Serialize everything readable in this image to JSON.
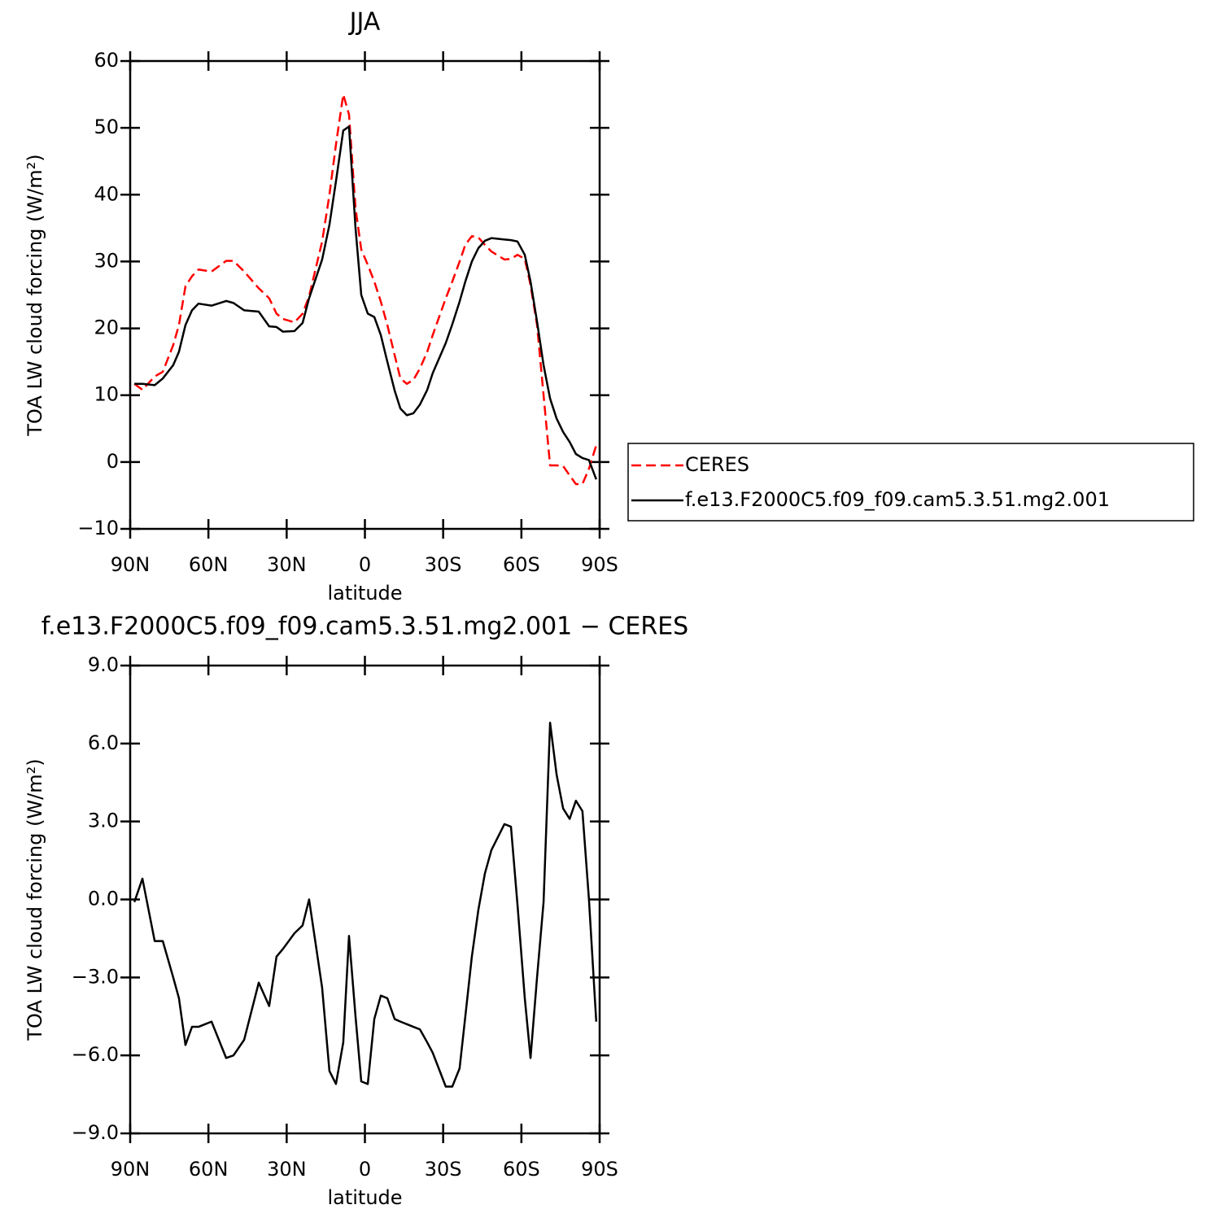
{
  "chart_data": [
    {
      "type": "line",
      "title": "JJA",
      "xlabel": "latitude",
      "ylabel": "TOA LW cloud forcing (W/m²)",
      "x": [
        88.4,
        85.3,
        80.6,
        77.5,
        73.5,
        71.3,
        68.8,
        66.3,
        63.8,
        58.8,
        53.2,
        50.4,
        46.3,
        40.7,
        36.7,
        33.9,
        31.4,
        27.0,
        23.9,
        21.4,
        16.4,
        13.6,
        11.1,
        8.3,
        6.1,
        3.6,
        1.4,
        -1.1,
        -3.6,
        -6.1,
        -8.6,
        -11.4,
        -13.6,
        -16.1,
        -18.6,
        -21.1,
        -23.9,
        -26.0,
        -31.0,
        -33.5,
        -36.3,
        -38.5,
        -41.0,
        -43.5,
        -46.0,
        -48.5,
        -53.5,
        -56.0,
        -58.5,
        -61.3,
        -63.5,
        -66.0,
        -68.5,
        -71.0,
        -73.5,
        -76.0,
        -78.5,
        -80.9,
        -83.4,
        -85.9,
        -88.7
      ],
      "series": [
        {
          "name": "CERES",
          "color": "#ff0000",
          "dashed": true,
          "values": [
            11.7,
            10.8,
            12.8,
            13.5,
            17.5,
            20.5,
            26.3,
            27.8,
            28.8,
            28.5,
            30.1,
            30.1,
            28.5,
            26,
            24.5,
            22.2,
            21.4,
            20.9,
            22.2,
            24.8,
            33,
            40,
            47.5,
            55,
            52,
            38,
            31.8,
            29.5,
            27,
            24,
            20.5,
            16,
            12.5,
            11.7,
            12.3,
            14,
            16.5,
            19,
            24.5,
            27,
            30,
            32.5,
            33.8,
            33.6,
            32.5,
            31.5,
            30.3,
            30.4,
            31,
            30.4,
            26.5,
            20.5,
            10,
            -0.5,
            -0.5,
            -0.6,
            -2,
            -3.3,
            -3.3,
            -1,
            2.5
          ]
        },
        {
          "name": "f.e13.F2000C5.f09_f09.cam5.3.51.mg2.001",
          "color": "#000000",
          "dashed": false,
          "values": [
            11.7,
            11.7,
            11.5,
            12.5,
            14.5,
            16.5,
            20.5,
            22.7,
            23.7,
            23.4,
            24.1,
            23.8,
            22.7,
            22.5,
            20.3,
            20.2,
            19.5,
            19.6,
            20.8,
            24.5,
            30.3,
            35.5,
            42,
            49.6,
            50.2,
            35,
            25,
            22.2,
            21.7,
            19,
            15,
            10.7,
            8,
            7,
            7.3,
            8.6,
            10.8,
            13.3,
            17.8,
            20.6,
            24,
            27,
            30,
            32,
            33.1,
            33.5,
            33.3,
            33.2,
            33,
            31,
            27,
            21,
            14.5,
            9.5,
            6.5,
            4.5,
            3,
            1.2,
            0.6,
            0.3,
            -2.6
          ]
        }
      ],
      "xlim": [
        90,
        -90
      ],
      "xticks": [
        {
          "value": 90,
          "label": "90N"
        },
        {
          "value": 60,
          "label": "60N"
        },
        {
          "value": 30,
          "label": "30N"
        },
        0,
        {
          "value": -30,
          "label": "30S"
        },
        {
          "value": -60,
          "label": "60S"
        },
        {
          "value": -90,
          "label": "90S"
        }
      ],
      "ylim": [
        -10,
        60
      ],
      "yticks": [
        {
          "value": -10,
          "label": "−10"
        },
        0,
        10,
        20,
        30,
        40,
        50,
        60
      ],
      "legend": "right"
    },
    {
      "type": "line",
      "title": "f.e13.F2000C5.f09_f09.cam5.3.51.mg2.001 − CERES",
      "xlabel": "latitude",
      "ylabel": "TOA LW cloud forcing (W/m²)",
      "x": [
        88.4,
        85.3,
        80.6,
        77.5,
        73.5,
        71.3,
        68.8,
        66.3,
        63.8,
        58.8,
        53.2,
        50.4,
        46.3,
        40.7,
        36.7,
        33.9,
        31.4,
        27.0,
        23.9,
        21.4,
        16.4,
        13.6,
        11.1,
        8.3,
        6.1,
        3.6,
        1.4,
        -1.1,
        -3.6,
        -6.1,
        -8.6,
        -11.4,
        -13.6,
        -16.1,
        -18.6,
        -21.1,
        -23.9,
        -26.0,
        -31.0,
        -33.5,
        -36.3,
        -38.5,
        -41.0,
        -43.5,
        -46.0,
        -48.5,
        -53.5,
        -56.0,
        -58.5,
        -61.3,
        -63.5,
        -66.0,
        -68.5,
        -71.0,
        -73.5,
        -76.0,
        -78.5,
        -80.9,
        -83.4,
        -85.9,
        -88.7
      ],
      "values": [
        -0.1,
        0.8,
        -1.6,
        -1.6,
        -3,
        -3.8,
        -5.6,
        -4.9,
        -4.9,
        -4.7,
        -6.1,
        -6,
        -5.4,
        -3.2,
        -4.1,
        -2.2,
        -1.9,
        -1.3,
        -1,
        0,
        -3.4,
        -6.6,
        -7.1,
        -5.5,
        -1.4,
        -4.5,
        -7,
        -7.1,
        -4.6,
        -3.7,
        -3.8,
        -4.6,
        -4.7,
        -4.8,
        -4.9,
        -5,
        -5.5,
        -5.9,
        -7.2,
        -7.2,
        -6.5,
        -4.5,
        -2.2,
        -0.4,
        1,
        1.9,
        2.9,
        2.8,
        -0.2,
        -3.8,
        -6.1,
        -3,
        -0.1,
        6.8,
        4.8,
        3.5,
        3.1,
        3.8,
        3.4,
        0,
        -4.7
      ],
      "color": "#000000",
      "xlim": [
        90,
        -90
      ],
      "xticks": [
        {
          "value": 90,
          "label": "90N"
        },
        {
          "value": 60,
          "label": "60N"
        },
        {
          "value": 30,
          "label": "30N"
        },
        0,
        {
          "value": -30,
          "label": "30S"
        },
        {
          "value": -60,
          "label": "60S"
        },
        {
          "value": -90,
          "label": "90S"
        }
      ],
      "ylim": [
        -9,
        9
      ],
      "yticks": [
        {
          "value": -9,
          "label": "−9.0"
        },
        {
          "value": -6,
          "label": "−6.0"
        },
        {
          "value": -3,
          "label": "−3.0"
        },
        {
          "value": 0,
          "label": "0.0"
        },
        {
          "value": 3,
          "label": "3.0"
        },
        {
          "value": 6,
          "label": "6.0"
        },
        {
          "value": 9,
          "label": "9.0"
        }
      ]
    }
  ]
}
